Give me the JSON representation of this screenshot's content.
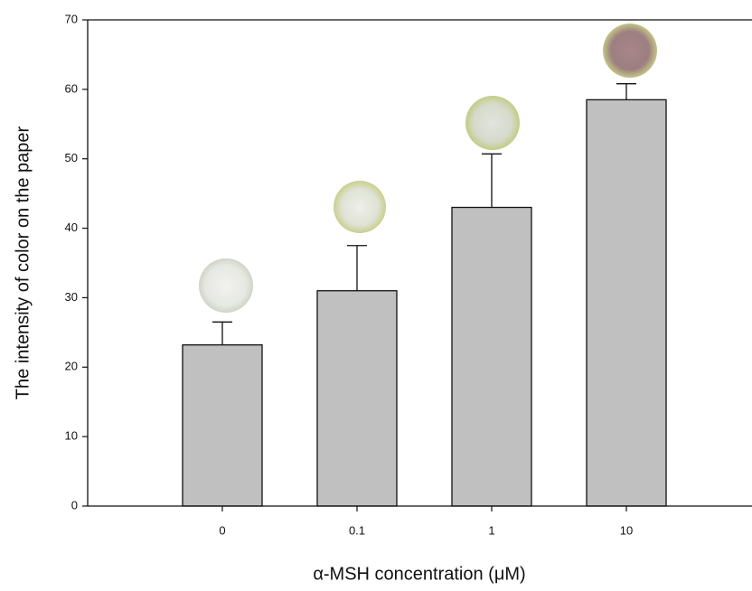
{
  "chart_data": {
    "type": "bar",
    "x_label": "α-MSH concentration (μM)",
    "y_label": "The intensity of color on the paper",
    "categories": [
      "0",
      "0.1",
      "1",
      "10"
    ],
    "values": [
      23.2,
      31,
      43,
      58.5
    ],
    "errors": [
      3.3,
      6.5,
      7.7,
      2.3
    ],
    "color": "#c0c0c0",
    "ylim": [
      0,
      70
    ],
    "yticks": [
      0,
      10,
      20,
      30,
      40,
      50,
      60,
      70
    ]
  }
}
